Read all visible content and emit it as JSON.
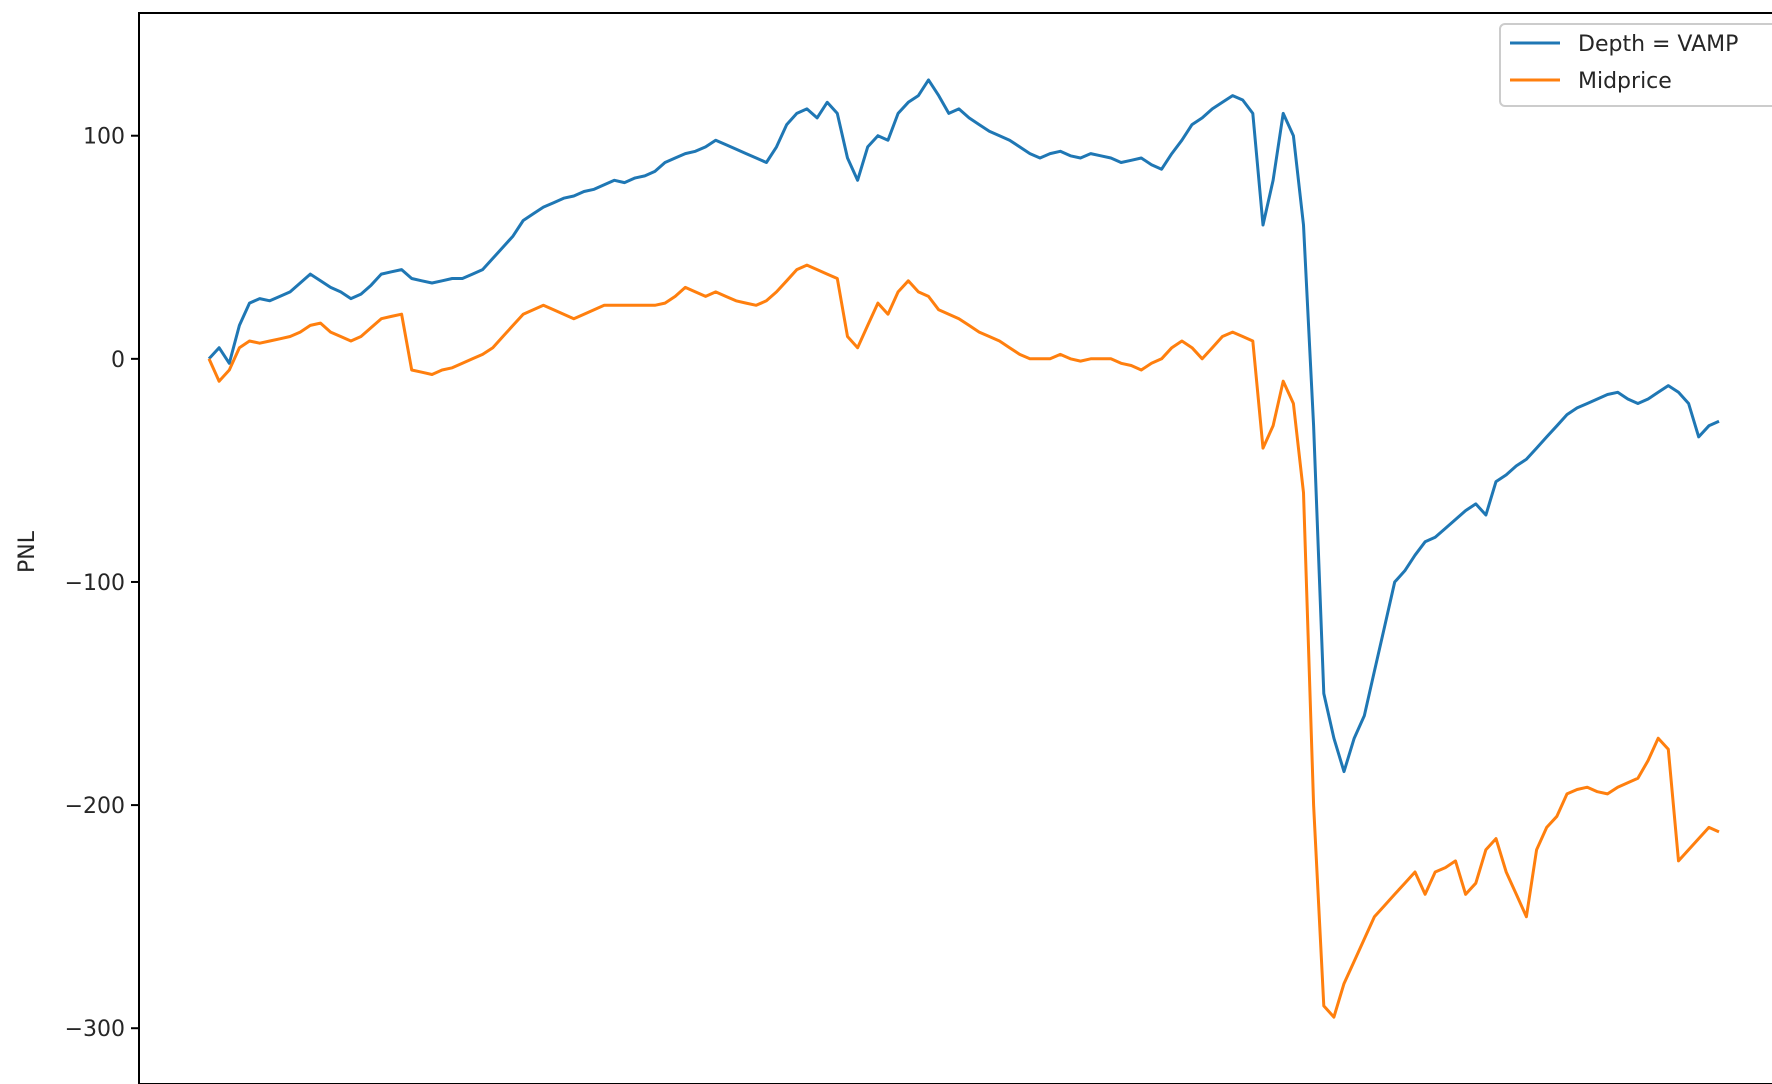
{
  "chart_data": {
    "type": "line",
    "title": "",
    "xlabel": "",
    "ylabel": "PNL",
    "ylim": [
      -325,
      155
    ],
    "yticks": [
      100,
      0,
      -100,
      -200,
      -300
    ],
    "ytick_labels": [
      "100",
      "0",
      "−100",
      "−200",
      "−300"
    ],
    "grid": false,
    "legend_position": "top-right",
    "series": [
      {
        "name": "Depth = VAMP",
        "color": "#1f77b4",
        "points": [
          [
            0,
            0
          ],
          [
            2,
            5
          ],
          [
            4,
            -2
          ],
          [
            6,
            15
          ],
          [
            8,
            25
          ],
          [
            10,
            27
          ],
          [
            12,
            26
          ],
          [
            14,
            28
          ],
          [
            16,
            30
          ],
          [
            18,
            34
          ],
          [
            20,
            38
          ],
          [
            22,
            35
          ],
          [
            24,
            32
          ],
          [
            26,
            30
          ],
          [
            28,
            27
          ],
          [
            30,
            29
          ],
          [
            32,
            33
          ],
          [
            34,
            38
          ],
          [
            36,
            39
          ],
          [
            38,
            40
          ],
          [
            40,
            36
          ],
          [
            42,
            35
          ],
          [
            44,
            34
          ],
          [
            46,
            35
          ],
          [
            48,
            36
          ],
          [
            50,
            36
          ],
          [
            52,
            38
          ],
          [
            54,
            40
          ],
          [
            56,
            45
          ],
          [
            58,
            50
          ],
          [
            60,
            55
          ],
          [
            62,
            62
          ],
          [
            64,
            65
          ],
          [
            66,
            68
          ],
          [
            68,
            70
          ],
          [
            70,
            72
          ],
          [
            72,
            73
          ],
          [
            74,
            75
          ],
          [
            76,
            76
          ],
          [
            78,
            78
          ],
          [
            80,
            80
          ],
          [
            82,
            79
          ],
          [
            84,
            81
          ],
          [
            86,
            82
          ],
          [
            88,
            84
          ],
          [
            90,
            88
          ],
          [
            92,
            90
          ],
          [
            94,
            92
          ],
          [
            96,
            93
          ],
          [
            98,
            95
          ],
          [
            100,
            98
          ],
          [
            102,
            96
          ],
          [
            104,
            94
          ],
          [
            106,
            92
          ],
          [
            108,
            90
          ],
          [
            110,
            88
          ],
          [
            112,
            95
          ],
          [
            114,
            105
          ],
          [
            116,
            110
          ],
          [
            118,
            112
          ],
          [
            120,
            108
          ],
          [
            122,
            115
          ],
          [
            124,
            110
          ],
          [
            126,
            90
          ],
          [
            128,
            80
          ],
          [
            130,
            95
          ],
          [
            132,
            100
          ],
          [
            134,
            98
          ],
          [
            136,
            110
          ],
          [
            138,
            115
          ],
          [
            140,
            118
          ],
          [
            142,
            125
          ],
          [
            144,
            118
          ],
          [
            146,
            110
          ],
          [
            148,
            112
          ],
          [
            150,
            108
          ],
          [
            152,
            105
          ],
          [
            154,
            102
          ],
          [
            156,
            100
          ],
          [
            158,
            98
          ],
          [
            160,
            95
          ],
          [
            162,
            92
          ],
          [
            164,
            90
          ],
          [
            166,
            92
          ],
          [
            168,
            93
          ],
          [
            170,
            91
          ],
          [
            172,
            90
          ],
          [
            174,
            92
          ],
          [
            176,
            91
          ],
          [
            178,
            90
          ],
          [
            180,
            88
          ],
          [
            182,
            89
          ],
          [
            184,
            90
          ],
          [
            186,
            87
          ],
          [
            188,
            85
          ],
          [
            190,
            92
          ],
          [
            192,
            98
          ],
          [
            194,
            105
          ],
          [
            196,
            108
          ],
          [
            198,
            112
          ],
          [
            200,
            115
          ],
          [
            202,
            118
          ],
          [
            204,
            116
          ],
          [
            206,
            110
          ],
          [
            208,
            60
          ],
          [
            210,
            80
          ],
          [
            212,
            110
          ],
          [
            214,
            100
          ],
          [
            216,
            60
          ],
          [
            218,
            -30
          ],
          [
            220,
            -150
          ],
          [
            222,
            -170
          ],
          [
            224,
            -185
          ],
          [
            226,
            -170
          ],
          [
            228,
            -160
          ],
          [
            230,
            -140
          ],
          [
            232,
            -120
          ],
          [
            234,
            -100
          ],
          [
            236,
            -95
          ],
          [
            238,
            -88
          ],
          [
            240,
            -82
          ],
          [
            242,
            -80
          ],
          [
            244,
            -76
          ],
          [
            246,
            -72
          ],
          [
            248,
            -68
          ],
          [
            250,
            -65
          ],
          [
            252,
            -70
          ],
          [
            254,
            -55
          ],
          [
            256,
            -52
          ],
          [
            258,
            -48
          ],
          [
            260,
            -45
          ],
          [
            262,
            -40
          ],
          [
            264,
            -35
          ],
          [
            266,
            -30
          ],
          [
            268,
            -25
          ],
          [
            270,
            -22
          ],
          [
            272,
            -20
          ],
          [
            274,
            -18
          ],
          [
            276,
            -16
          ],
          [
            278,
            -15
          ],
          [
            280,
            -18
          ],
          [
            282,
            -20
          ],
          [
            284,
            -18
          ],
          [
            286,
            -15
          ],
          [
            288,
            -12
          ],
          [
            290,
            -15
          ],
          [
            292,
            -20
          ],
          [
            294,
            -35
          ],
          [
            296,
            -30
          ],
          [
            298,
            -28
          ]
        ]
      },
      {
        "name": "Midprice",
        "color": "#ff7f0e",
        "points": [
          [
            0,
            0
          ],
          [
            2,
            -10
          ],
          [
            4,
            -5
          ],
          [
            6,
            5
          ],
          [
            8,
            8
          ],
          [
            10,
            7
          ],
          [
            12,
            8
          ],
          [
            14,
            9
          ],
          [
            16,
            10
          ],
          [
            18,
            12
          ],
          [
            20,
            15
          ],
          [
            22,
            16
          ],
          [
            24,
            12
          ],
          [
            26,
            10
          ],
          [
            28,
            8
          ],
          [
            30,
            10
          ],
          [
            32,
            14
          ],
          [
            34,
            18
          ],
          [
            36,
            19
          ],
          [
            38,
            20
          ],
          [
            40,
            -5
          ],
          [
            42,
            -6
          ],
          [
            44,
            -7
          ],
          [
            46,
            -5
          ],
          [
            48,
            -4
          ],
          [
            50,
            -2
          ],
          [
            52,
            0
          ],
          [
            54,
            2
          ],
          [
            56,
            5
          ],
          [
            58,
            10
          ],
          [
            60,
            15
          ],
          [
            62,
            20
          ],
          [
            64,
            22
          ],
          [
            66,
            24
          ],
          [
            68,
            22
          ],
          [
            70,
            20
          ],
          [
            72,
            18
          ],
          [
            74,
            20
          ],
          [
            76,
            22
          ],
          [
            78,
            24
          ],
          [
            80,
            24
          ],
          [
            82,
            24
          ],
          [
            84,
            24
          ],
          [
            86,
            24
          ],
          [
            88,
            24
          ],
          [
            90,
            25
          ],
          [
            92,
            28
          ],
          [
            94,
            32
          ],
          [
            96,
            30
          ],
          [
            98,
            28
          ],
          [
            100,
            30
          ],
          [
            102,
            28
          ],
          [
            104,
            26
          ],
          [
            106,
            25
          ],
          [
            108,
            24
          ],
          [
            110,
            26
          ],
          [
            112,
            30
          ],
          [
            114,
            35
          ],
          [
            116,
            40
          ],
          [
            118,
            42
          ],
          [
            120,
            40
          ],
          [
            122,
            38
          ],
          [
            124,
            36
          ],
          [
            126,
            10
          ],
          [
            128,
            5
          ],
          [
            130,
            15
          ],
          [
            132,
            25
          ],
          [
            134,
            20
          ],
          [
            136,
            30
          ],
          [
            138,
            35
          ],
          [
            140,
            30
          ],
          [
            142,
            28
          ],
          [
            144,
            22
          ],
          [
            146,
            20
          ],
          [
            148,
            18
          ],
          [
            150,
            15
          ],
          [
            152,
            12
          ],
          [
            154,
            10
          ],
          [
            156,
            8
          ],
          [
            158,
            5
          ],
          [
            160,
            2
          ],
          [
            162,
            0
          ],
          [
            164,
            0
          ],
          [
            166,
            0
          ],
          [
            168,
            2
          ],
          [
            170,
            0
          ],
          [
            172,
            -1
          ],
          [
            174,
            0
          ],
          [
            176,
            0
          ],
          [
            178,
            0
          ],
          [
            180,
            -2
          ],
          [
            182,
            -3
          ],
          [
            184,
            -5
          ],
          [
            186,
            -2
          ],
          [
            188,
            0
          ],
          [
            190,
            5
          ],
          [
            192,
            8
          ],
          [
            194,
            5
          ],
          [
            196,
            0
          ],
          [
            198,
            5
          ],
          [
            200,
            10
          ],
          [
            202,
            12
          ],
          [
            204,
            10
          ],
          [
            206,
            8
          ],
          [
            208,
            -40
          ],
          [
            210,
            -30
          ],
          [
            212,
            -10
          ],
          [
            214,
            -20
          ],
          [
            216,
            -60
          ],
          [
            218,
            -200
          ],
          [
            220,
            -290
          ],
          [
            222,
            -295
          ],
          [
            224,
            -280
          ],
          [
            226,
            -270
          ],
          [
            228,
            -260
          ],
          [
            230,
            -250
          ],
          [
            232,
            -245
          ],
          [
            234,
            -240
          ],
          [
            236,
            -235
          ],
          [
            238,
            -230
          ],
          [
            240,
            -240
          ],
          [
            242,
            -230
          ],
          [
            244,
            -228
          ],
          [
            246,
            -225
          ],
          [
            248,
            -240
          ],
          [
            250,
            -235
          ],
          [
            252,
            -220
          ],
          [
            254,
            -215
          ],
          [
            256,
            -230
          ],
          [
            258,
            -240
          ],
          [
            260,
            -250
          ],
          [
            262,
            -220
          ],
          [
            264,
            -210
          ],
          [
            266,
            -205
          ],
          [
            268,
            -195
          ],
          [
            270,
            -193
          ],
          [
            272,
            -192
          ],
          [
            274,
            -194
          ],
          [
            276,
            -195
          ],
          [
            278,
            -192
          ],
          [
            280,
            -190
          ],
          [
            282,
            -188
          ],
          [
            284,
            -180
          ],
          [
            286,
            -170
          ],
          [
            288,
            -175
          ],
          [
            290,
            -225
          ],
          [
            292,
            -220
          ],
          [
            294,
            -215
          ],
          [
            296,
            -210
          ],
          [
            298,
            -212
          ]
        ]
      }
    ]
  }
}
